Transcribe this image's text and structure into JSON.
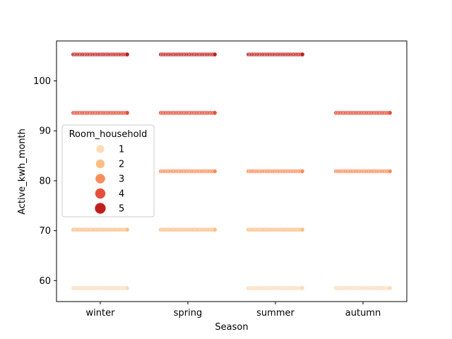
{
  "chart_data": {
    "type": "scatter",
    "xlabel": "Season",
    "ylabel": "Active_kwh_month",
    "categories": [
      "winter",
      "spring",
      "summer",
      "autumn"
    ],
    "y_ticks": [
      60,
      70,
      80,
      90,
      100
    ],
    "ylim": [
      55.8,
      108.0
    ],
    "grid": false,
    "legend": {
      "title": "Room_household",
      "placement": "center-left",
      "entries": [
        "1",
        "2",
        "3",
        "4",
        "5"
      ]
    },
    "series": [
      {
        "name": "1",
        "color": "#fddbb5",
        "y": 58.5,
        "categories": [
          "winter",
          "summer",
          "autumn"
        ]
      },
      {
        "name": "2",
        "color": "#fcbf86",
        "y": 70.2,
        "categories": [
          "winter",
          "spring",
          "summer"
        ]
      },
      {
        "name": "3",
        "color": "#f98e5c",
        "y": 81.9,
        "categories": [
          "spring",
          "summer",
          "autumn"
        ]
      },
      {
        "name": "4",
        "color": "#e4503b",
        "y": 93.6,
        "categories": [
          "winter",
          "spring",
          "autumn"
        ]
      },
      {
        "name": "5",
        "color": "#c11f1f",
        "y": 105.3,
        "categories": [
          "winter",
          "spring",
          "summer"
        ]
      }
    ]
  }
}
